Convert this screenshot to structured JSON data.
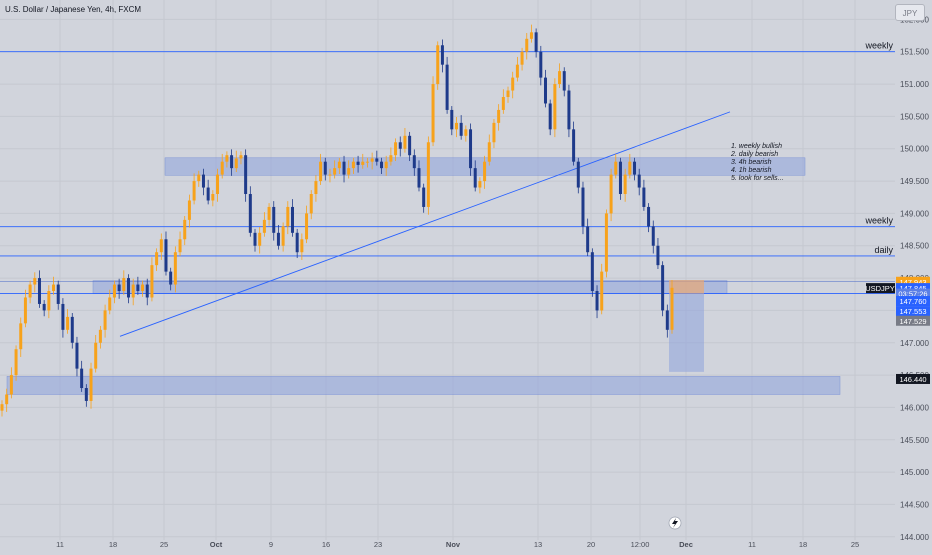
{
  "header": {
    "title": "U.S. Dollar / Japanese Yen, 4h, FXCM",
    "currency_button": "JPY"
  },
  "notes": [
    "1. weekly bullish",
    "2. daily bearish",
    "3. 4h bearish",
    "4. 1h bearish",
    "5. look for sells..."
  ],
  "colors": {
    "background": "#d1d4dc",
    "up_candle": "#f7a21b",
    "down_candle": "#1e3a8a",
    "level_line": "#2962ff",
    "zone_fill": "#8ea2dd",
    "price_label": "#2962ff",
    "dark_label": "#131722",
    "grey_label": "#787b86",
    "orange_label": "#f7a21b"
  },
  "chart_data": {
    "type": "candlestick",
    "symbol": "USDJPY",
    "timeframe": "4h",
    "y_axis": {
      "ylim": [
        143.95,
        152.3
      ],
      "ticks": [
        144.0,
        144.5,
        145.0,
        145.5,
        146.0,
        146.5,
        147.0,
        147.5,
        148.0,
        148.5,
        149.0,
        149.5,
        150.0,
        150.5,
        151.0,
        151.5,
        152.0
      ],
      "tick_labels": [
        "144.000",
        "144.500",
        "145.000",
        "145.500",
        "146.000",
        "146.500",
        "147.000",
        "147.500",
        "148.000",
        "148.500",
        "149.000",
        "149.500",
        "150.000",
        "150.500",
        "151.000",
        "151.500",
        "152.000"
      ]
    },
    "x_axis": {
      "ticks": [
        {
          "label": "11",
          "bold": false
        },
        {
          "label": "18",
          "bold": false
        },
        {
          "label": "25",
          "bold": false
        },
        {
          "label": "Oct",
          "bold": true
        },
        {
          "label": "9",
          "bold": false
        },
        {
          "label": "16",
          "bold": false
        },
        {
          "label": "23",
          "bold": false
        },
        {
          "label": "Nov",
          "bold": true
        },
        {
          "label": "13",
          "bold": false
        },
        {
          "label": "20",
          "bold": false
        },
        {
          "label": "12:00",
          "bold": false
        },
        {
          "label": "Dec",
          "bold": true
        },
        {
          "label": "11",
          "bold": false
        },
        {
          "label": "18",
          "bold": false
        },
        {
          "label": "25",
          "bold": false
        }
      ]
    },
    "horizontal_levels": [
      {
        "price": 151.5,
        "label": "weekly",
        "axis_label": "151.500"
      },
      {
        "price": 148.795,
        "label": "weekly",
        "axis_label": "148.795"
      },
      {
        "price": 148.342,
        "label": "daily",
        "axis_label": "148.342"
      },
      {
        "price": 147.76,
        "label": "daily",
        "axis_label": "147.760"
      }
    ],
    "zones": [
      {
        "from": 149.59,
        "to": 149.86
      },
      {
        "from": 147.765,
        "to": 147.96
      },
      {
        "from": 146.2,
        "to": 146.48
      }
    ],
    "trendline": {
      "from": 147.1,
      "to": 150.57
    },
    "axis_price_labels": [
      {
        "text": "147.943",
        "price": 147.943,
        "style": "orange"
      },
      {
        "text": "USDJPY",
        "price": 147.845,
        "style": "dark"
      },
      {
        "text": "147.845",
        "price": 147.845,
        "style": "blue"
      },
      {
        "text": "03:57:26",
        "price": 147.76,
        "style": "blue-light"
      },
      {
        "text": "147.760",
        "price": 147.645,
        "style": "blue"
      },
      {
        "text": "147.553",
        "price": 147.49,
        "style": "blue"
      },
      {
        "text": "147.529",
        "price": 147.34,
        "style": "grey"
      },
      {
        "text": "146.440",
        "price": 146.44,
        "style": "dark"
      }
    ],
    "close_series": [
      146.05,
      146.2,
      146.5,
      146.9,
      147.3,
      147.7,
      147.9,
      148.0,
      147.6,
      147.5,
      147.8,
      147.9,
      147.6,
      147.2,
      147.4,
      147.0,
      146.6,
      146.3,
      146.1,
      146.6,
      147.0,
      147.2,
      147.5,
      147.7,
      147.9,
      147.8,
      148.0,
      147.7,
      147.9,
      147.8,
      147.9,
      147.7,
      148.2,
      148.4,
      148.6,
      148.1,
      147.9,
      148.4,
      148.6,
      148.9,
      149.2,
      149.5,
      149.6,
      149.4,
      149.2,
      149.3,
      149.6,
      149.8,
      149.9,
      149.7,
      149.85,
      149.9,
      149.3,
      148.7,
      148.5,
      148.7,
      148.9,
      149.1,
      148.7,
      148.5,
      148.8,
      149.1,
      148.7,
      148.4,
      148.6,
      149.0,
      149.3,
      149.5,
      149.8,
      149.6,
      149.6,
      149.7,
      149.8,
      149.6,
      149.7,
      149.8,
      149.75,
      149.8,
      149.8,
      149.85,
      149.8,
      149.7,
      149.8,
      149.9,
      150.1,
      150.0,
      150.2,
      149.9,
      149.7,
      149.4,
      149.1,
      150.1,
      151.0,
      151.6,
      151.3,
      150.6,
      150.3,
      150.4,
      150.2,
      150.3,
      149.7,
      149.4,
      149.5,
      149.8,
      150.1,
      150.4,
      150.6,
      150.8,
      150.9,
      151.1,
      151.3,
      151.5,
      151.7,
      151.8,
      151.5,
      151.1,
      150.7,
      150.3,
      151.0,
      151.2,
      150.9,
      150.3,
      149.8,
      149.4,
      148.8,
      148.4,
      147.8,
      147.5,
      148.1,
      149.0,
      149.6,
      149.8,
      149.3,
      149.6,
      149.8,
      149.6,
      149.4,
      149.1,
      148.8,
      148.5,
      148.2,
      147.5,
      147.2,
      147.85
    ]
  }
}
